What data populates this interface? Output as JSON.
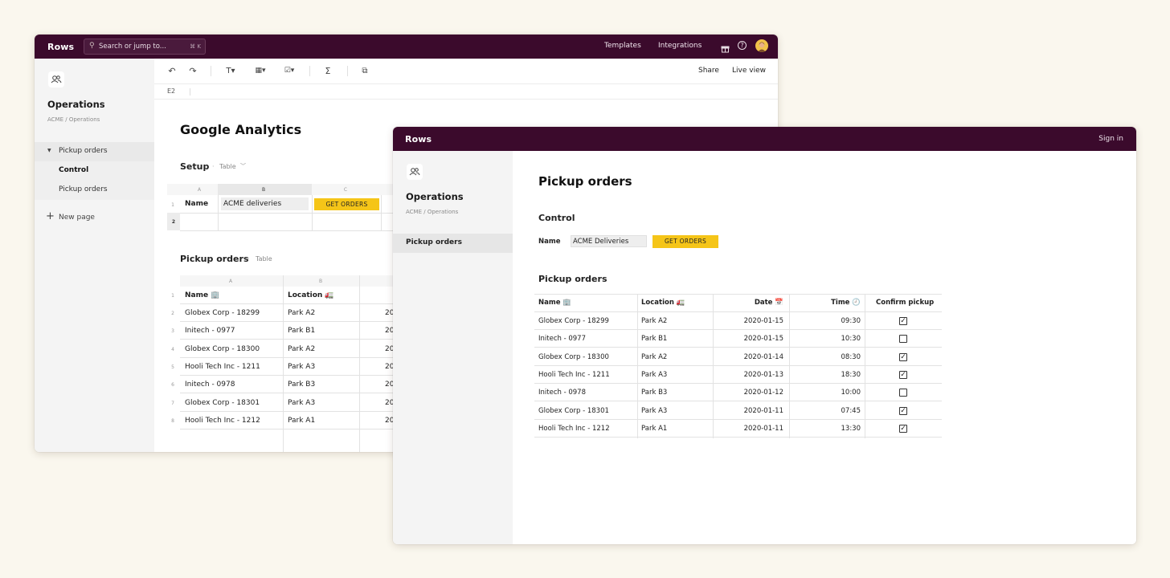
{
  "back": {
    "app_name": "Rows",
    "search_placeholder": "Search or jump to...",
    "search_shortcut": "⌘ K",
    "templates": "Templates",
    "integrations": "Integrations",
    "workspace_title": "Operations",
    "workspace_path": "ACME / Operations",
    "nav_pickup_orders": "Pickup orders",
    "nav_control": "Control",
    "nav_pickup_orders_sub": "Pickup orders",
    "new_page": "New page",
    "share": "Share",
    "live_view": "Live view",
    "cell_ref": "E2",
    "doc_title": "Google Analytics",
    "setup_title": "Setup",
    "table_tag": "Table",
    "setup_cols": [
      "A",
      "B",
      "C"
    ],
    "setup_row1_num": "1",
    "setup_row2_num": "2",
    "setup_name_label": "Name",
    "setup_name_value": "ACME deliveries",
    "get_orders": "GET ORDERS",
    "pickup_title": "Pickup orders",
    "pickup_table_tag": "Table",
    "pickup_cols": [
      "A",
      "B"
    ],
    "header_row_num": "1",
    "col_name": "Name 🏢",
    "col_location": "Location 🚛",
    "rows": [
      {
        "n": "2",
        "name": "Globex Corp - 18299",
        "loc": "Park A2",
        "date": "20"
      },
      {
        "n": "3",
        "name": "Initech - 0977",
        "loc": "Park B1",
        "date": "20"
      },
      {
        "n": "4",
        "name": "Globex Corp - 18300",
        "loc": "Park A2",
        "date": "20"
      },
      {
        "n": "5",
        "name": "Hooli Tech Inc - 1211",
        "loc": "Park A3",
        "date": "20"
      },
      {
        "n": "6",
        "name": "Initech - 0978",
        "loc": "Park B3",
        "date": "20"
      },
      {
        "n": "7",
        "name": "Globex Corp - 18301",
        "loc": "Park A3",
        "date": "20"
      },
      {
        "n": "8",
        "name": "Hooli Tech Inc - 1212",
        "loc": "Park A1",
        "date": "20"
      }
    ]
  },
  "front": {
    "app_name": "Rows",
    "sign_in": "Sign in",
    "workspace_title": "Operations",
    "workspace_path": "ACME / Operations",
    "nav_pickup_orders": "Pickup orders",
    "page_title": "Pickup orders",
    "control_title": "Control",
    "name_label": "Name",
    "name_value": "ACME Deliveries",
    "get_orders": "GET ORDERS",
    "table_title": "Pickup orders",
    "col_name": "Name 🏢",
    "col_location": "Location 🚛",
    "col_date": "Date 📅",
    "col_time": "Time 🕘",
    "col_confirm": "Confirm pickup",
    "rows": [
      {
        "name": "Globex Corp - 18299",
        "loc": "Park A2",
        "date": "2020-01-15",
        "time": "09:30",
        "confirmed": true
      },
      {
        "name": "Initech - 0977",
        "loc": "Park B1",
        "date": "2020-01-15",
        "time": "10:30",
        "confirmed": false
      },
      {
        "name": "Globex Corp - 18300",
        "loc": "Park A2",
        "date": "2020-01-14",
        "time": "08:30",
        "confirmed": true
      },
      {
        "name": "Hooli Tech Inc - 1211",
        "loc": "Park A3",
        "date": "2020-01-13",
        "time": "18:30",
        "confirmed": true
      },
      {
        "name": "Initech - 0978",
        "loc": "Park B3",
        "date": "2020-01-12",
        "time": "10:00",
        "confirmed": false
      },
      {
        "name": "Globex Corp - 18301",
        "loc": "Park A3",
        "date": "2020-01-11",
        "time": "07:45",
        "confirmed": true
      },
      {
        "name": "Hooli Tech Inc - 1212",
        "loc": "Park A1",
        "date": "2020-01-11",
        "time": "13:30",
        "confirmed": true
      }
    ]
  }
}
